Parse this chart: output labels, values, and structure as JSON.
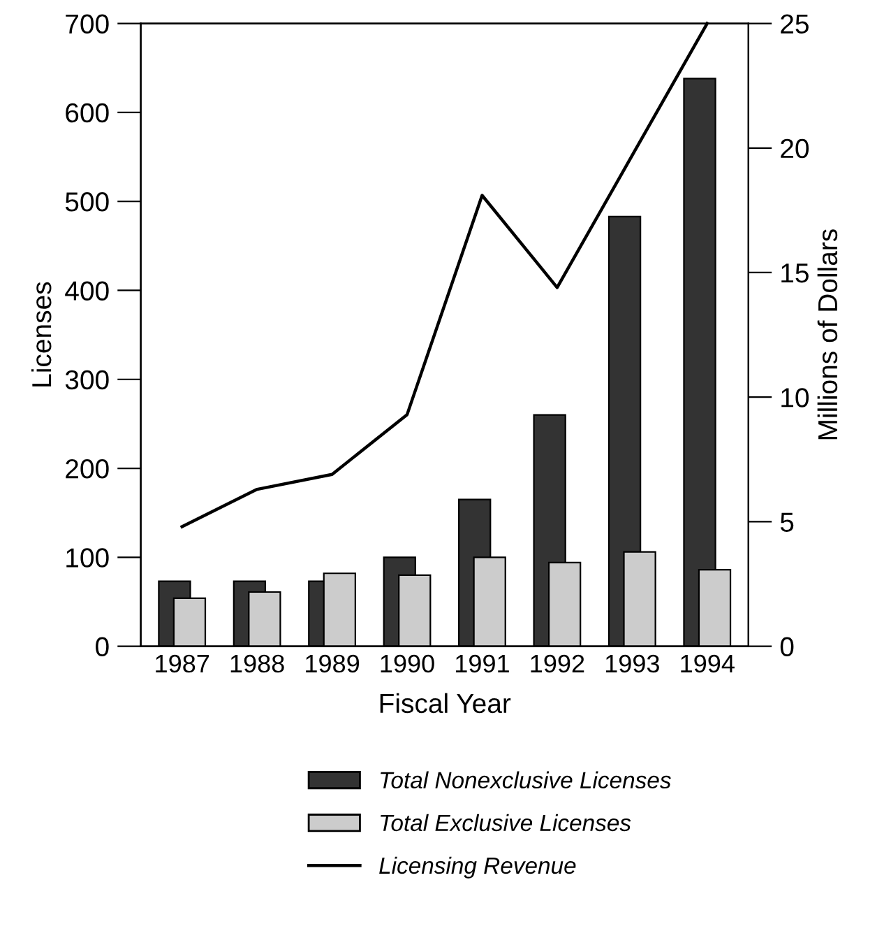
{
  "chart_data": {
    "type": "bar",
    "xlabel": "Fiscal Year",
    "ylabel": "Licenses",
    "y2label": "Millions of Dollars",
    "categories": [
      "1987",
      "1988",
      "1989",
      "1990",
      "1991",
      "1992",
      "1993",
      "1994"
    ],
    "series": [
      {
        "name": "Total Nonexclusive Licenses",
        "color": "#333333",
        "values": [
          73,
          73,
          73,
          100,
          165,
          260,
          483,
          638
        ]
      },
      {
        "name": "Total Exclusive Licenses",
        "color": "#cccccc",
        "values": [
          54,
          61,
          82,
          80,
          100,
          94,
          106,
          86
        ]
      },
      {
        "name": "Licensing Revenue",
        "type": "line",
        "axis": "y2",
        "color": "#000000",
        "values": [
          4.8,
          6.3,
          6.9,
          9.3,
          18.1,
          14.4,
          19.7,
          25
        ]
      }
    ],
    "ylim": [
      0,
      700
    ],
    "yticks": [
      0,
      100,
      200,
      300,
      400,
      500,
      600,
      700
    ],
    "y2lim": [
      0,
      25
    ],
    "y2ticks": [
      0,
      5,
      10,
      15,
      20,
      25
    ],
    "grid": false,
    "legend": "bottom",
    "marker": "none",
    "line_style": "solid"
  }
}
